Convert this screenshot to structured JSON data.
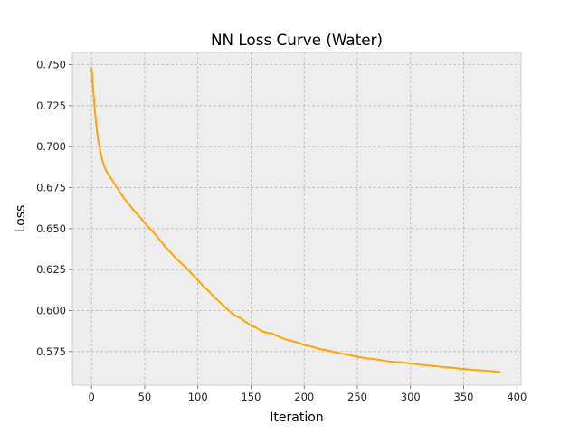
{
  "chart_data": {
    "type": "line",
    "title": "NN Loss Curve (Water)",
    "xlabel": "Iteration",
    "ylabel": "Loss",
    "xlim": [
      -18,
      404
    ],
    "ylim": [
      0.5545,
      0.7575
    ],
    "grid": true,
    "xticks": [
      0,
      50,
      100,
      150,
      200,
      250,
      300,
      350,
      400
    ],
    "xtick_labels": [
      "0",
      "50",
      "100",
      "150",
      "200",
      "250",
      "300",
      "350",
      "400"
    ],
    "yticks": [
      0.575,
      0.6,
      0.625,
      0.65,
      0.675,
      0.7,
      0.725,
      0.75
    ],
    "ytick_labels": [
      "0.575",
      "0.600",
      "0.625",
      "0.650",
      "0.675",
      "0.700",
      "0.725",
      "0.750"
    ],
    "series": [
      {
        "color": "#ffa500",
        "x": [
          0,
          1,
          2,
          3,
          4,
          5,
          6,
          8,
          10,
          12,
          14,
          16,
          18,
          20,
          25,
          30,
          35,
          40,
          45,
          50,
          55,
          60,
          65,
          70,
          75,
          80,
          85,
          90,
          95,
          100,
          105,
          110,
          115,
          120,
          125,
          130,
          135,
          140,
          145,
          150,
          155,
          160,
          165,
          170,
          175,
          180,
          185,
          190,
          195,
          200,
          205,
          210,
          215,
          220,
          225,
          230,
          235,
          240,
          245,
          250,
          255,
          260,
          265,
          270,
          275,
          280,
          285,
          290,
          295,
          300,
          305,
          310,
          315,
          320,
          325,
          330,
          335,
          340,
          345,
          350,
          355,
          360,
          365,
          370,
          375,
          380,
          384
        ],
        "y": [
          0.748,
          0.74,
          0.731,
          0.723,
          0.716,
          0.71,
          0.705,
          0.698,
          0.692,
          0.688,
          0.685,
          0.683,
          0.681,
          0.679,
          0.674,
          0.669,
          0.665,
          0.661,
          0.6575,
          0.6535,
          0.65,
          0.6465,
          0.6425,
          0.6385,
          0.635,
          0.6315,
          0.6285,
          0.6255,
          0.622,
          0.6185,
          0.615,
          0.612,
          0.6085,
          0.6055,
          0.6025,
          0.5995,
          0.597,
          0.5955,
          0.593,
          0.591,
          0.5895,
          0.5875,
          0.5865,
          0.586,
          0.5845,
          0.583,
          0.582,
          0.5812,
          0.5803,
          0.579,
          0.5783,
          0.5775,
          0.5765,
          0.576,
          0.5752,
          0.5745,
          0.5737,
          0.5733,
          0.5725,
          0.5718,
          0.5713,
          0.5708,
          0.5705,
          0.57,
          0.5695,
          0.569,
          0.5687,
          0.5685,
          0.5682,
          0.5678,
          0.5673,
          0.567,
          0.5667,
          0.5663,
          0.566,
          0.5657,
          0.5654,
          0.5651,
          0.5647,
          0.5644,
          0.5641,
          0.5638,
          0.5636,
          0.5634,
          0.5631,
          0.5628,
          0.5626
        ]
      }
    ]
  }
}
